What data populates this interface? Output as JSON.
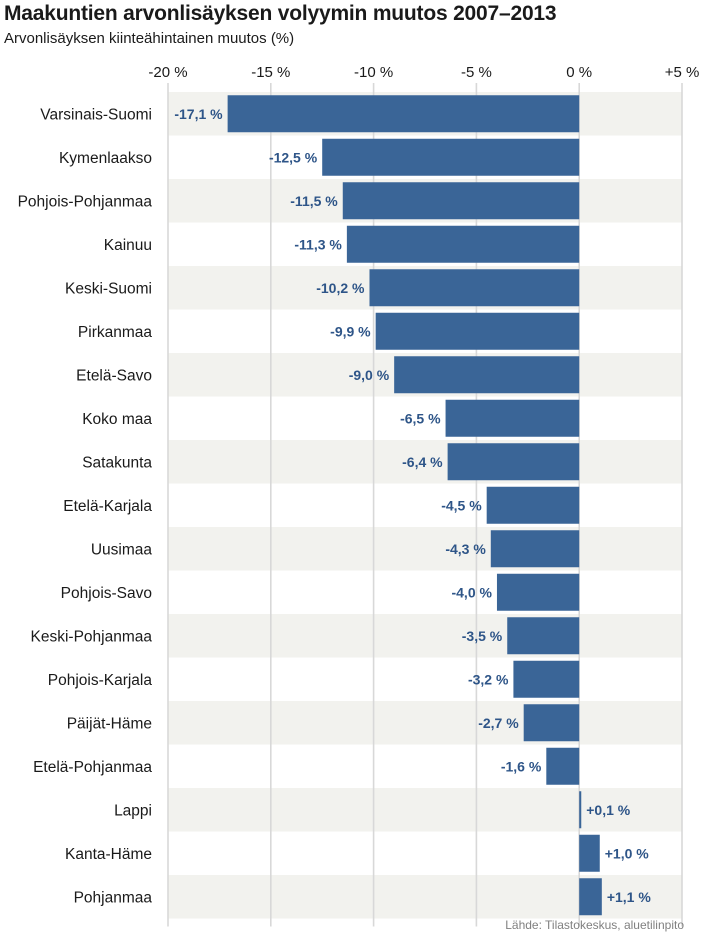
{
  "chart_data": {
    "type": "bar",
    "orientation": "horizontal",
    "title": "Maakuntien arvonlisäyksen volyymin muutos 2007–2013",
    "subtitle": "Arvonlisäyksen kiinteähintainen muutos (%)",
    "source": "Lähde: Tilastokeskus, aluetilinpito",
    "xlim": [
      -20,
      5
    ],
    "xticks": [
      -20,
      -15,
      -10,
      -5,
      0,
      5
    ],
    "xtick_labels": [
      "-20 %",
      "-15 %",
      "-10 %",
      "-5 %",
      "0 %",
      "+5 %"
    ],
    "grid": true,
    "colors": {
      "bar": "#3a6597",
      "label": "#2e5588",
      "band": "#f2f2ee",
      "grid": "#d8d8d8"
    },
    "categories": [
      "Varsinais-Suomi",
      "Kymenlaakso",
      "Pohjois-Pohjanmaa",
      "Kainuu",
      "Keski-Suomi",
      "Pirkanmaa",
      "Etelä-Savo",
      "Koko maa",
      "Satakunta",
      "Etelä-Karjala",
      "Uusimaa",
      "Pohjois-Savo",
      "Keski-Pohjanmaa",
      "Pohjois-Karjala",
      "Päijät-Häme",
      "Etelä-Pohjanmaa",
      "Lappi",
      "Kanta-Häme",
      "Pohjanmaa"
    ],
    "values": [
      -17.1,
      -12.5,
      -11.5,
      -11.3,
      -10.2,
      -9.9,
      -9.0,
      -6.5,
      -6.4,
      -4.5,
      -4.3,
      -4.0,
      -3.5,
      -3.2,
      -2.7,
      -1.6,
      0.1,
      1.0,
      1.1
    ],
    "value_labels": [
      "-17,1 %",
      "-12,5 %",
      "-11,5 %",
      "-11,3 %",
      "-10,2 %",
      "-9,9 %",
      "-9,0 %",
      "-6,5 %",
      "-6,4 %",
      "-4,5 %",
      "-4,3 %",
      "-4,0 %",
      "-3,5 %",
      "-3,2 %",
      "-2,7 %",
      "-1,6 %",
      "+0,1 %",
      "+1,0 %",
      "+1,1 %"
    ]
  }
}
